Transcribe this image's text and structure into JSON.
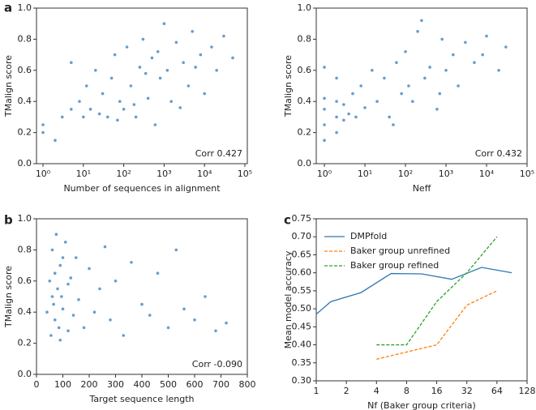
{
  "chart_data": [
    {
      "type": "scatter",
      "panel_label": "a",
      "ylabel": "TMalign score",
      "xlabel": "Number of sequences in alignment",
      "annotation": "Corr 0.427",
      "xscale": "log",
      "xlim": [
        0.69,
        115000
      ],
      "ylim": [
        0,
        1
      ],
      "xticks": [
        {
          "value": 1,
          "label": "10⁰"
        },
        {
          "value": 10,
          "label": "10¹"
        },
        {
          "value": 100,
          "label": "10²"
        },
        {
          "value": 1000,
          "label": "10³"
        },
        {
          "value": 10000,
          "label": "10⁴"
        },
        {
          "value": 100000,
          "label": "10⁵"
        }
      ],
      "yticks": [
        {
          "value": 0,
          "label": "0.0"
        },
        0.2,
        0.4,
        0.6,
        0.8,
        {
          "value": 1,
          "label": "1.0"
        }
      ],
      "series": [
        {
          "color": "#3f85c2",
          "x": [
            1,
            1,
            2,
            3,
            5,
            5,
            8,
            10,
            12,
            15,
            20,
            25,
            30,
            40,
            50,
            60,
            80,
            100,
            120,
            150,
            200,
            250,
            300,
            400,
            500,
            600,
            800,
            1000,
            1200,
            1500,
            2000,
            3000,
            4000,
            5000,
            8000,
            10000,
            15000,
            20000,
            30000,
            50000,
            70,
            180,
            350,
            700,
            2500,
            6000
          ],
          "values": [
            0.25,
            0.2,
            0.15,
            0.3,
            0.35,
            0.65,
            0.4,
            0.3,
            0.5,
            0.35,
            0.6,
            0.32,
            0.45,
            0.3,
            0.55,
            0.7,
            0.4,
            0.35,
            0.75,
            0.5,
            0.3,
            0.62,
            0.8,
            0.42,
            0.68,
            0.25,
            0.55,
            0.9,
            0.6,
            0.4,
            0.78,
            0.65,
            0.5,
            0.85,
            0.7,
            0.45,
            0.75,
            0.6,
            0.82,
            0.68,
            0.28,
            0.38,
            0.58,
            0.72,
            0.36,
            0.62
          ]
        }
      ]
    },
    {
      "type": "scatter",
      "ylabel": "TMalign score",
      "xlabel": "Neff",
      "annotation": "Corr 0.432",
      "xscale": "log",
      "xlim": [
        0.63,
        100000
      ],
      "ylim": [
        0,
        1
      ],
      "xticks": [
        {
          "value": 1,
          "label": "10⁰"
        },
        {
          "value": 10,
          "label": "10¹"
        },
        {
          "value": 100,
          "label": "10²"
        },
        {
          "value": 1000,
          "label": "10³"
        },
        {
          "value": 10000,
          "label": "10⁴"
        },
        {
          "value": 100000,
          "label": "10⁵"
        }
      ],
      "yticks": [
        {
          "value": 0,
          "label": "0.0"
        },
        0.2,
        0.4,
        0.6,
        0.8,
        {
          "value": 1,
          "label": "1.0"
        }
      ],
      "series": [
        {
          "color": "#3f85c2",
          "x": [
            1,
            1,
            1,
            1,
            2,
            2,
            2,
            3,
            3,
            4,
            5,
            6,
            8,
            10,
            15,
            20,
            30,
            40,
            60,
            80,
            100,
            150,
            200,
            300,
            400,
            600,
            800,
            1000,
            1500,
            2000,
            3000,
            5000,
            8000,
            10000,
            20000,
            30000,
            1,
            2,
            50,
            120,
            250,
            700
          ],
          "values": [
            0.15,
            0.25,
            0.35,
            0.42,
            0.2,
            0.3,
            0.4,
            0.28,
            0.38,
            0.32,
            0.45,
            0.3,
            0.5,
            0.36,
            0.6,
            0.4,
            0.55,
            0.3,
            0.65,
            0.45,
            0.72,
            0.4,
            0.85,
            0.55,
            0.62,
            0.35,
            0.8,
            0.6,
            0.7,
            0.5,
            0.78,
            0.65,
            0.7,
            0.82,
            0.6,
            0.75,
            0.62,
            0.55,
            0.25,
            0.5,
            0.92,
            0.45
          ]
        }
      ]
    },
    {
      "type": "scatter",
      "panel_label": "b",
      "ylabel": "TMalign score",
      "xlabel": "Target sequence length",
      "annotation": "Corr -0.090",
      "xscale": "linear",
      "xlim": [
        0,
        800
      ],
      "ylim": [
        0,
        1
      ],
      "xticks": [
        0,
        100,
        200,
        300,
        400,
        500,
        600,
        700,
        800
      ],
      "yticks": [
        {
          "value": 0,
          "label": "0.0"
        },
        0.2,
        0.4,
        0.6,
        0.8,
        {
          "value": 1,
          "label": "1.0"
        }
      ],
      "series": [
        {
          "color": "#3f85c2",
          "x": [
            40,
            50,
            55,
            60,
            65,
            70,
            75,
            80,
            85,
            90,
            95,
            100,
            110,
            120,
            130,
            140,
            150,
            160,
            180,
            200,
            220,
            240,
            260,
            280,
            300,
            330,
            360,
            400,
            430,
            460,
            500,
            530,
            560,
            600,
            640,
            680,
            720,
            60,
            70,
            90,
            100,
            120
          ],
          "values": [
            0.4,
            0.6,
            0.25,
            0.8,
            0.45,
            0.35,
            0.9,
            0.55,
            0.3,
            0.7,
            0.5,
            0.42,
            0.85,
            0.28,
            0.62,
            0.38,
            0.75,
            0.48,
            0.3,
            0.68,
            0.4,
            0.55,
            0.82,
            0.35,
            0.6,
            0.25,
            0.72,
            0.45,
            0.38,
            0.65,
            0.3,
            0.8,
            0.42,
            0.35,
            0.5,
            0.28,
            0.33,
            0.5,
            0.65,
            0.22,
            0.75,
            0.58
          ]
        }
      ]
    },
    {
      "type": "line",
      "panel_label": "c",
      "ylabel": "Mean model accuracy",
      "xlabel": "Nf (Baker group criteria)",
      "xscale": "log2",
      "xlim": [
        1,
        128
      ],
      "ylim": [
        0.3,
        0.75
      ],
      "xticks": [
        1,
        2,
        4,
        8,
        16,
        32,
        64,
        128
      ],
      "yticks": [
        {
          "value": 0.3,
          "label": "0.30"
        },
        0.35,
        {
          "value": 0.4,
          "label": "0.40"
        },
        0.45,
        {
          "value": 0.5,
          "label": "0.50"
        },
        0.55,
        {
          "value": 0.6,
          "label": "0.60"
        },
        0.65,
        {
          "value": 0.7,
          "label": "0.70"
        },
        0.75
      ],
      "legend": "upper left",
      "series": [
        {
          "name": "DMPfold",
          "color": "#2f77b4",
          "dash": false,
          "x": [
            1,
            1.4,
            2.8,
            5.6,
            11.3,
            22.6,
            45,
            90
          ],
          "values": [
            0.485,
            0.52,
            0.545,
            0.598,
            0.597,
            0.582,
            0.615,
            0.6
          ]
        },
        {
          "name": "Baker group unrefined",
          "color": "#ff7f0e",
          "dash": true,
          "x": [
            4,
            16,
            32,
            64
          ],
          "values": [
            0.36,
            0.4,
            0.51,
            0.55
          ]
        },
        {
          "name": "Baker group refined",
          "color": "#2ca02c",
          "dash": true,
          "x": [
            4,
            8,
            16,
            32,
            64
          ],
          "values": [
            0.4,
            0.4,
            0.52,
            0.6,
            0.7
          ]
        }
      ]
    }
  ]
}
